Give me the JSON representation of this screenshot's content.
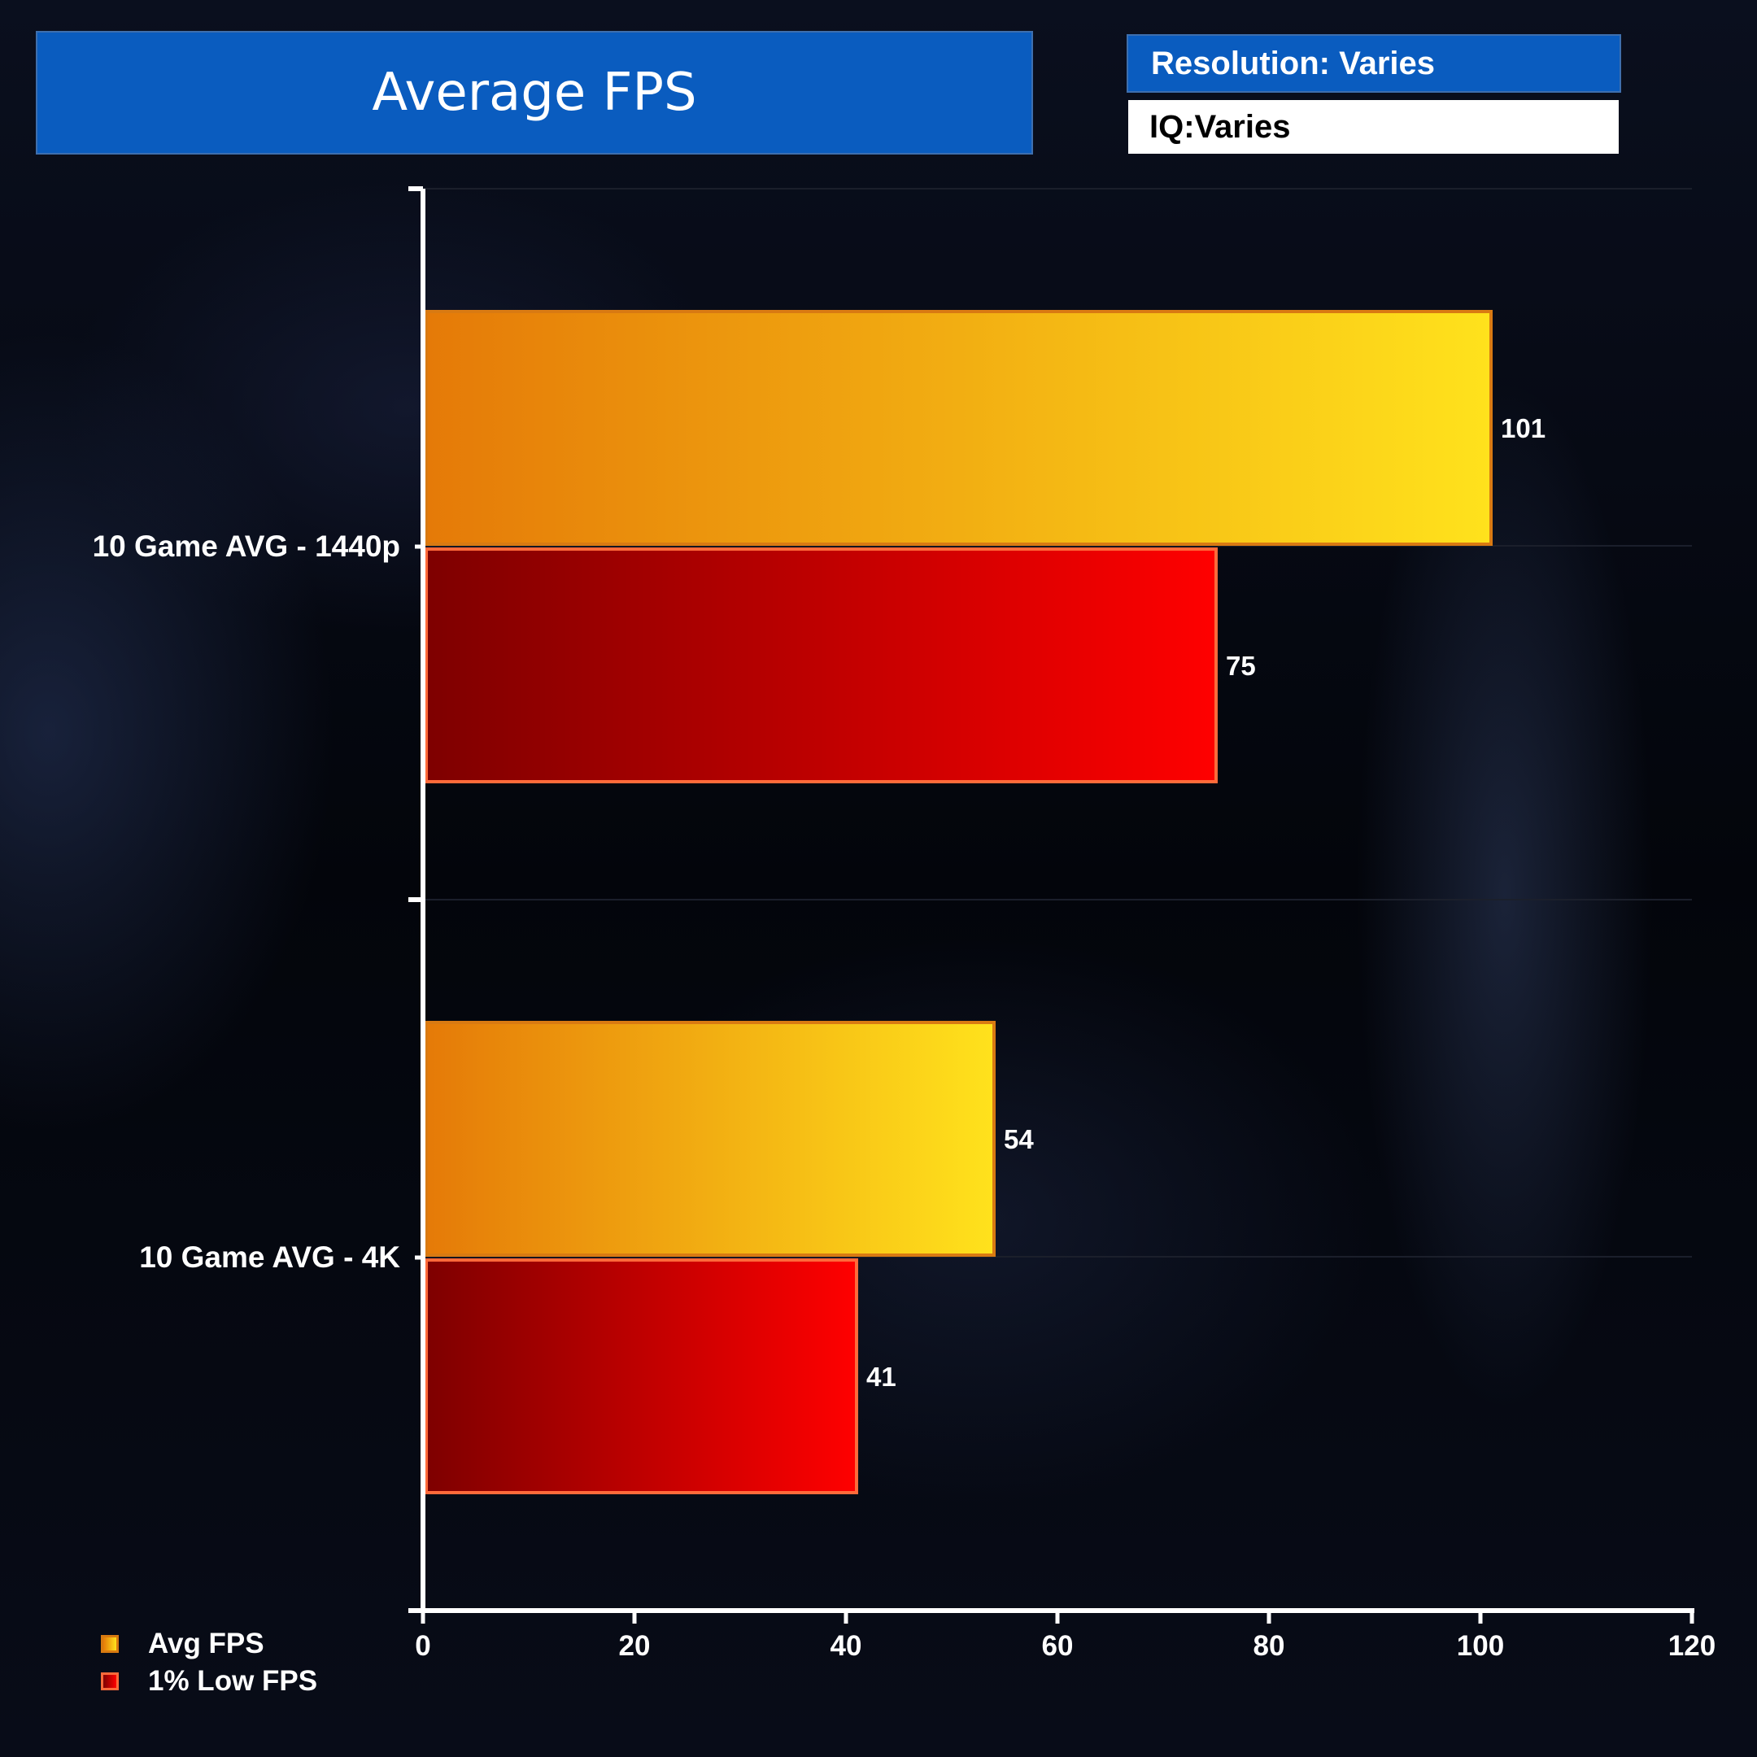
{
  "chart_data": {
    "type": "bar",
    "orientation": "horizontal",
    "title": "Average FPS",
    "info": {
      "resolution": "Resolution: Varies",
      "iq": "IQ:Varies"
    },
    "categories": [
      "10 Game AVG - 1440p",
      "10 Game AVG - 4K"
    ],
    "series": [
      {
        "name": "Avg FPS",
        "values": [
          101,
          54
        ],
        "color_start": "#e57a08",
        "color_end": "#ffe21c",
        "border": "#d97a12"
      },
      {
        "name": "1% Low FPS",
        "values": [
          75,
          41
        ],
        "color_start": "#7e0000",
        "color_end": "#ff0000",
        "border": "#ff6a3a"
      }
    ],
    "xlim": [
      0,
      120
    ],
    "xticks": [
      "0",
      "20",
      "40",
      "60",
      "80",
      "100",
      "120"
    ],
    "xtick_values": [
      0,
      20,
      40,
      60,
      80,
      100,
      120
    ],
    "legend_position": "bottom-left"
  }
}
